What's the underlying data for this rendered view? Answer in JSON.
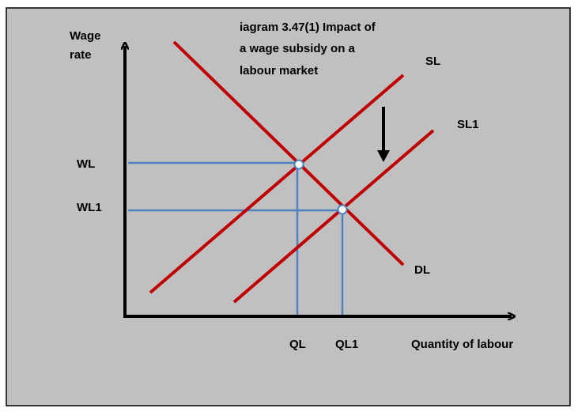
{
  "title": {
    "lines": [
      "iagram 3.47(1) Impact of",
      "a wage subsidy on a",
      "labour market"
    ]
  },
  "axes": {
    "y_label": [
      "Wage",
      "rate"
    ],
    "x_label": "Quantity of labour"
  },
  "curves": {
    "supply": "SL",
    "supply_new": "SL1",
    "demand": "DL"
  },
  "levels": {
    "wage": "WL",
    "wage_new": "WL1",
    "quantity": "QL",
    "quantity_new": "QL1"
  }
}
